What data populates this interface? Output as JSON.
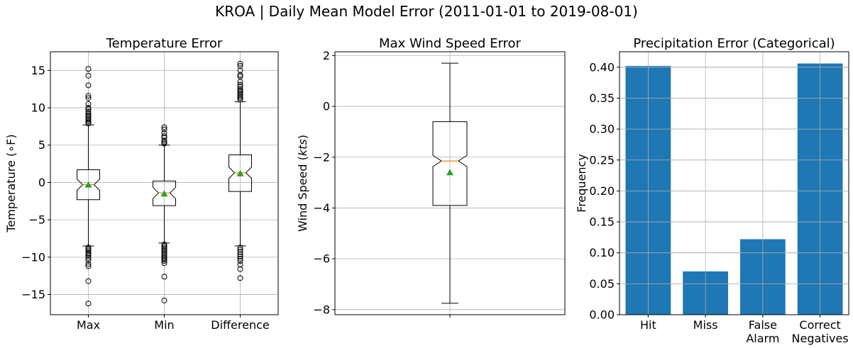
{
  "figure_title": "KROA | Daily Mean Model Error (2011-01-01 to 2019-08-01)",
  "chart_data": [
    {
      "type": "box",
      "title": "Temperature Error",
      "xlabel": "",
      "ylabel": "Temperature (∘F)",
      "ylim": [
        -17.7,
        17.5
      ],
      "yticks": [
        -15,
        -10,
        -5,
        0,
        5,
        10,
        15
      ],
      "ytick_labels": [
        "−15",
        "−10",
        "−5",
        "0",
        "5",
        "10",
        "15"
      ],
      "categories": [
        "Max",
        "Min",
        "Difference"
      ],
      "grid": true,
      "boxes": [
        {
          "name": "Max",
          "q1": -2.3,
          "median": -0.3,
          "q3": 1.7,
          "mean": -0.3,
          "whisker_low": -8.5,
          "whisker_high": 7.7,
          "fliers": [
            15.2,
            14.3,
            13.0,
            11.6,
            11.3,
            10.5,
            10.0,
            9.8,
            9.5,
            9.2,
            9.0,
            8.8,
            8.6,
            8.4,
            8.2,
            8.0,
            7.9,
            -8.7,
            -8.9,
            -9.1,
            -9.4,
            -9.6,
            -9.8,
            -10.1,
            -10.4,
            -10.9,
            -11.2,
            -13.2,
            -16.2
          ]
        },
        {
          "name": "Min",
          "q1": -3.1,
          "median": -1.4,
          "q3": 0.2,
          "mean": -1.5,
          "whisker_low": -8.1,
          "whisker_high": 5.0,
          "fliers": [
            7.4,
            7.1,
            6.6,
            6.2,
            6.0,
            5.6,
            5.4,
            5.2,
            -8.3,
            -8.5,
            -8.7,
            -8.9,
            -9.1,
            -9.3,
            -9.5,
            -9.7,
            -9.9,
            -10.1,
            -10.3,
            -10.5,
            -10.8,
            -12.6,
            -15.8
          ]
        },
        {
          "name": "Difference",
          "q1": -1.2,
          "median": 1.3,
          "q3": 3.7,
          "mean": 1.2,
          "whisker_low": -8.5,
          "whisker_high": 10.8,
          "fliers": [
            15.9,
            15.6,
            15.0,
            14.4,
            14.2,
            13.5,
            13.1,
            12.8,
            12.5,
            12.3,
            12.1,
            11.9,
            11.7,
            11.5,
            11.3,
            11.1,
            -8.7,
            -9.0,
            -9.3,
            -9.6,
            -9.9,
            -10.2,
            -10.5,
            -11.0,
            -11.6,
            -12.8
          ]
        }
      ],
      "colors": {
        "median": "#ff7f0e",
        "mean": "#2ca02c"
      }
    },
    {
      "type": "box",
      "title": "Max Wind Speed Error",
      "xlabel": "",
      "ylabel": "Wind Speed (kts)",
      "ylabel_plain": "Wind Speed (",
      "ylabel_italic": "kts",
      "ylabel_close": ")",
      "ylim": [
        -8.2,
        2.15
      ],
      "yticks": [
        -8,
        -6,
        -4,
        -2,
        0,
        2
      ],
      "ytick_labels": [
        "−8",
        "−6",
        "−4",
        "−2",
        "0",
        "2"
      ],
      "grid": true,
      "boxes": [
        {
          "name": "",
          "q1": -3.9,
          "median": -2.15,
          "q3": -0.6,
          "mean": -2.6,
          "whisker_low": -7.75,
          "whisker_high": 1.7,
          "fliers": []
        }
      ],
      "colors": {
        "median": "#ff7f0e",
        "mean": "#2ca02c"
      }
    },
    {
      "type": "bar",
      "title": "Precipitation Error (Categorical)",
      "xlabel": "",
      "ylabel": "Frequency",
      "ylim": [
        0,
        0.425
      ],
      "yticks": [
        0,
        0.05,
        0.1,
        0.15,
        0.2,
        0.25,
        0.3,
        0.35,
        0.4
      ],
      "ytick_labels": [
        "0.00",
        "0.05",
        "0.10",
        "0.15",
        "0.20",
        "0.25",
        "0.30",
        "0.35",
        "0.40"
      ],
      "categories": [
        [
          "Hit"
        ],
        [
          "Miss"
        ],
        [
          "False",
          "Alarm"
        ],
        [
          "Correct",
          "Negatives"
        ]
      ],
      "category_names": [
        "Hit",
        "Miss",
        "False Alarm",
        "Correct Negatives"
      ],
      "values": [
        0.402,
        0.07,
        0.122,
        0.406
      ],
      "grid": true,
      "colors": {
        "bar": "#1f77b4"
      }
    }
  ]
}
